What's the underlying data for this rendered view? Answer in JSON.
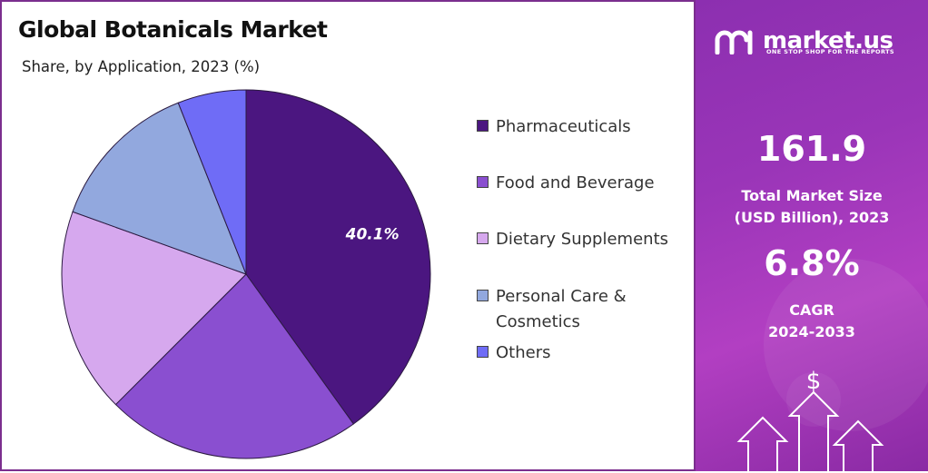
{
  "title": "Global Botanicals Market",
  "subtitle": "Share, by Application, 2023 (%)",
  "chart_data": {
    "type": "pie",
    "title": "Global Botanicals Market",
    "subtitle": "Share, by Application, 2023 (%)",
    "categories": [
      "Pharmaceuticals",
      "Food and Beverage",
      "Dietary Supplements",
      "Personal Care & Cosmetics",
      "Others"
    ],
    "legend_labels": [
      "Pharmaceuticals",
      "Food and Beverage",
      "Dietary Supplements",
      "Personal Care &\nCosmetics",
      "Others"
    ],
    "values": [
      40.1,
      22.4,
      18.0,
      13.5,
      6.0
    ],
    "colors": [
      "#4b1680",
      "#8a4fd0",
      "#d6a8ee",
      "#92a8de",
      "#6f6cf6"
    ],
    "data_labels": [
      "40.1%",
      "",
      "",
      "",
      ""
    ],
    "start_angle_deg": 0,
    "direction": "clockwise",
    "legend_position": "right"
  },
  "brand": {
    "name": "market.us",
    "tagline": "ONE STOP SHOP FOR THE REPORTS"
  },
  "stats": {
    "market_size_value": "161.9",
    "market_size_label_line1": "Total Market Size",
    "market_size_label_line2": "(USD Billion), 2023",
    "cagr_value": "6.8%",
    "cagr_label_line1": "CAGR",
    "cagr_label_line2": "2024-2033"
  },
  "decor": {
    "currency_symbol": "$"
  }
}
